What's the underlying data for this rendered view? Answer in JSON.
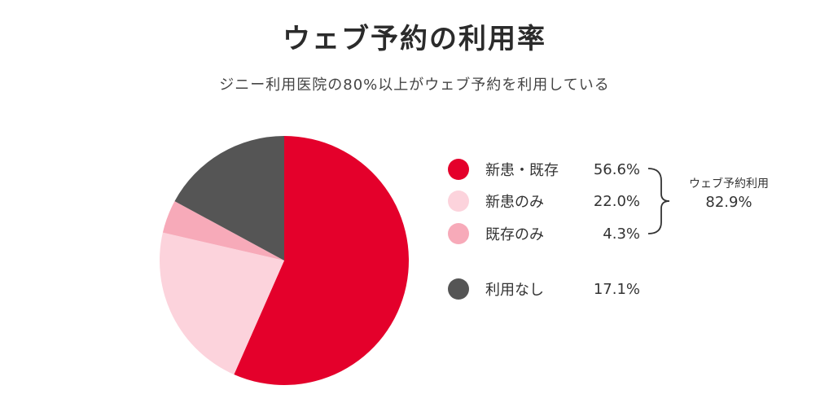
{
  "title": "ウェブ予約の利用率",
  "subtitle": "ジニー利用医院の80%以上がウェブ予約を利用している",
  "chart_data": {
    "type": "pie",
    "title": "ウェブ予約の利用率",
    "subtitle": "ジニー利用医院の80%以上がウェブ予約を利用している",
    "slices": [
      {
        "label": "新患・既存",
        "value": 56.6,
        "value_label": "56.6%",
        "color": "#e4002b"
      },
      {
        "label": "新患のみ",
        "value": 22.0,
        "value_label": "22.0%",
        "color": "#fcd3dc"
      },
      {
        "label": "既存のみ",
        "value": 4.3,
        "value_label": "4.3%",
        "color": "#f7aab9"
      },
      {
        "label": "利用なし",
        "value": 17.1,
        "value_label": "17.1%",
        "color": "#555555"
      }
    ],
    "group_annotation": {
      "label": "ウェブ予約利用",
      "value_label": "82.9%",
      "covers": [
        "新患・既存",
        "新患のみ",
        "既存のみ"
      ]
    },
    "legend_position": "right"
  }
}
